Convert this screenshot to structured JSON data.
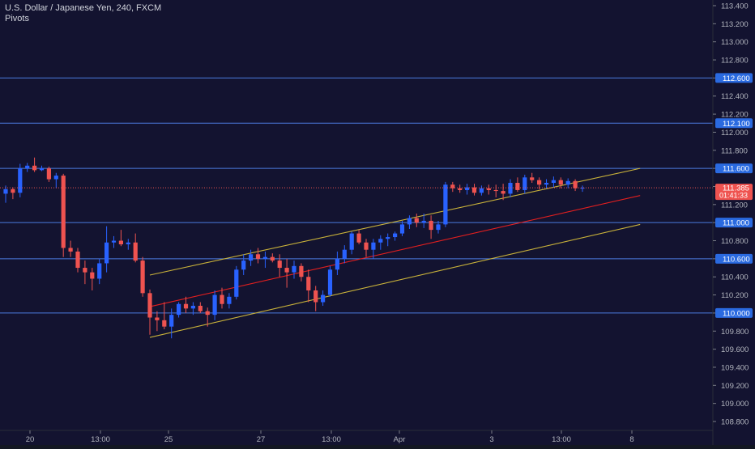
{
  "legend": {
    "symbol_line": "U.S. Dollar / Japanese Yen, 240, FXCM",
    "indicator": "Pivots"
  },
  "colors": {
    "background": "#131330",
    "bull": "#2962ff",
    "bear": "#ef5350",
    "pivot_line": "#4c7be0",
    "channel_outer": "#c9b23a",
    "channel_mid": "#e31f1f",
    "axis_text": "#b2b5be",
    "price_tag": "#2a6ae0",
    "last_price_tag": "#ef5350"
  },
  "chart_data": {
    "type": "candlestick",
    "title": "U.S. Dollar / Japanese Yen, 240, FXCM",
    "ylim": [
      108.7,
      113.5
    ],
    "y_ticks": [
      "113.400",
      "113.200",
      "113.000",
      "112.800",
      "112.600",
      "112.400",
      "112.200",
      "112.000",
      "111.800",
      "111.600",
      "111.400",
      "111.200",
      "111.000",
      "110.800",
      "110.600",
      "110.400",
      "110.200",
      "110.000",
      "109.800",
      "109.600",
      "109.400",
      "109.200",
      "109.000",
      "108.800"
    ],
    "x_ticks": [
      "20",
      "13:00",
      "25",
      "27",
      "13:00",
      "Apr",
      "3",
      "13:00",
      "8"
    ],
    "pivot_levels": [
      {
        "value": 112.6,
        "label": "112.600"
      },
      {
        "value": 112.1,
        "label": "112.100"
      },
      {
        "value": 111.6,
        "label": "111.600"
      },
      {
        "value": 111.0,
        "label": "111.000"
      },
      {
        "value": 110.6,
        "label": "110.600"
      },
      {
        "value": 110.0,
        "label": "110.000"
      }
    ],
    "last_price": {
      "value": 111.385,
      "label": "111.385",
      "countdown": "01:41:33"
    },
    "candles": [
      [
        111.32,
        111.41,
        111.22,
        111.37
      ],
      [
        111.37,
        111.39,
        111.26,
        111.33
      ],
      [
        111.33,
        111.65,
        111.28,
        111.6
      ],
      [
        111.6,
        111.66,
        111.56,
        111.63
      ],
      [
        111.63,
        111.72,
        111.56,
        111.58
      ],
      [
        111.58,
        111.63,
        111.57,
        111.6
      ],
      [
        111.6,
        111.62,
        111.45,
        111.48
      ],
      [
        111.48,
        111.55,
        111.38,
        111.52
      ],
      [
        111.52,
        111.54,
        110.62,
        110.72
      ],
      [
        110.72,
        110.8,
        110.62,
        110.68
      ],
      [
        110.68,
        110.72,
        110.45,
        110.5
      ],
      [
        110.5,
        110.58,
        110.32,
        110.45
      ],
      [
        110.45,
        110.5,
        110.25,
        110.38
      ],
      [
        110.38,
        110.6,
        110.32,
        110.55
      ],
      [
        110.55,
        110.96,
        110.45,
        110.78
      ],
      [
        110.78,
        110.85,
        110.72,
        110.8
      ],
      [
        110.8,
        110.92,
        110.74,
        110.76
      ],
      [
        110.76,
        110.82,
        110.7,
        110.78
      ],
      [
        110.78,
        110.88,
        110.56,
        110.58
      ],
      [
        110.58,
        110.62,
        110.18,
        110.22
      ],
      [
        110.22,
        110.26,
        109.76,
        109.95
      ],
      [
        109.95,
        110.02,
        109.8,
        109.92
      ],
      [
        109.92,
        110.12,
        109.82,
        109.85
      ],
      [
        109.85,
        110.05,
        109.72,
        109.98
      ],
      [
        109.98,
        110.12,
        109.95,
        110.1
      ],
      [
        110.1,
        110.18,
        110.0,
        110.05
      ],
      [
        110.05,
        110.12,
        109.98,
        110.08
      ],
      [
        110.08,
        110.12,
        110.0,
        110.02
      ],
      [
        110.02,
        110.06,
        109.85,
        109.98
      ],
      [
        109.98,
        110.25,
        109.92,
        110.2
      ],
      [
        110.2,
        110.28,
        110.05,
        110.1
      ],
      [
        110.1,
        110.22,
        110.05,
        110.18
      ],
      [
        110.18,
        110.52,
        110.15,
        110.48
      ],
      [
        110.48,
        110.65,
        110.42,
        110.58
      ],
      [
        110.58,
        110.7,
        110.52,
        110.65
      ],
      [
        110.65,
        110.72,
        110.55,
        110.6
      ],
      [
        110.6,
        110.68,
        110.5,
        110.62
      ],
      [
        110.62,
        110.66,
        110.56,
        110.58
      ],
      [
        110.58,
        110.65,
        110.4,
        110.5
      ],
      [
        110.5,
        110.6,
        110.28,
        110.45
      ],
      [
        110.45,
        110.58,
        110.38,
        110.52
      ],
      [
        110.52,
        110.55,
        110.35,
        110.4
      ],
      [
        110.4,
        110.48,
        110.12,
        110.25
      ],
      [
        110.25,
        110.3,
        110.02,
        110.12
      ],
      [
        110.12,
        110.25,
        110.08,
        110.2
      ],
      [
        110.2,
        110.52,
        110.18,
        110.48
      ],
      [
        110.48,
        110.68,
        110.42,
        110.6
      ],
      [
        110.6,
        110.75,
        110.55,
        110.7
      ],
      [
        110.7,
        110.9,
        110.65,
        110.88
      ],
      [
        110.88,
        110.92,
        110.76,
        110.78
      ],
      [
        110.78,
        110.82,
        110.62,
        110.7
      ],
      [
        110.7,
        110.82,
        110.6,
        110.78
      ],
      [
        110.78,
        110.86,
        110.7,
        110.82
      ],
      [
        110.82,
        110.88,
        110.74,
        110.84
      ],
      [
        110.84,
        110.9,
        110.8,
        110.88
      ],
      [
        110.88,
        111.02,
        110.85,
        110.98
      ],
      [
        110.98,
        111.08,
        110.93,
        111.05
      ],
      [
        111.05,
        111.1,
        110.95,
        111.0
      ],
      [
        111.0,
        111.1,
        110.94,
        111.02
      ],
      [
        111.02,
        111.08,
        110.82,
        110.92
      ],
      [
        110.92,
        111.02,
        110.88,
        110.98
      ],
      [
        110.98,
        111.45,
        110.95,
        111.42
      ],
      [
        111.42,
        111.45,
        111.34,
        111.38
      ],
      [
        111.38,
        111.42,
        111.33,
        111.36
      ],
      [
        111.36,
        111.43,
        111.31,
        111.39
      ],
      [
        111.39,
        111.43,
        111.3,
        111.33
      ],
      [
        111.33,
        111.41,
        111.3,
        111.38
      ],
      [
        111.38,
        111.42,
        111.31,
        111.36
      ],
      [
        111.36,
        111.42,
        111.28,
        111.35
      ],
      [
        111.35,
        111.43,
        111.25,
        111.32
      ],
      [
        111.32,
        111.48,
        111.28,
        111.44
      ],
      [
        111.44,
        111.5,
        111.34,
        111.36
      ],
      [
        111.36,
        111.53,
        111.32,
        111.5
      ],
      [
        111.5,
        111.55,
        111.44,
        111.47
      ],
      [
        111.47,
        111.5,
        111.37,
        111.42
      ],
      [
        111.42,
        111.48,
        111.38,
        111.44
      ],
      [
        111.44,
        111.51,
        111.39,
        111.47
      ],
      [
        111.47,
        111.5,
        111.38,
        111.42
      ],
      [
        111.42,
        111.49,
        111.38,
        111.46
      ],
      [
        111.46,
        111.48,
        111.35,
        111.38
      ],
      [
        111.38,
        111.41,
        111.34,
        111.385
      ]
    ],
    "channel": {
      "upper": [
        [
          20,
          110.42
        ],
        [
          88,
          111.6
        ]
      ],
      "middle": [
        [
          20,
          110.07
        ],
        [
          88,
          111.3
        ]
      ],
      "lower": [
        [
          20,
          109.73
        ],
        [
          88,
          110.98
        ]
      ]
    }
  }
}
